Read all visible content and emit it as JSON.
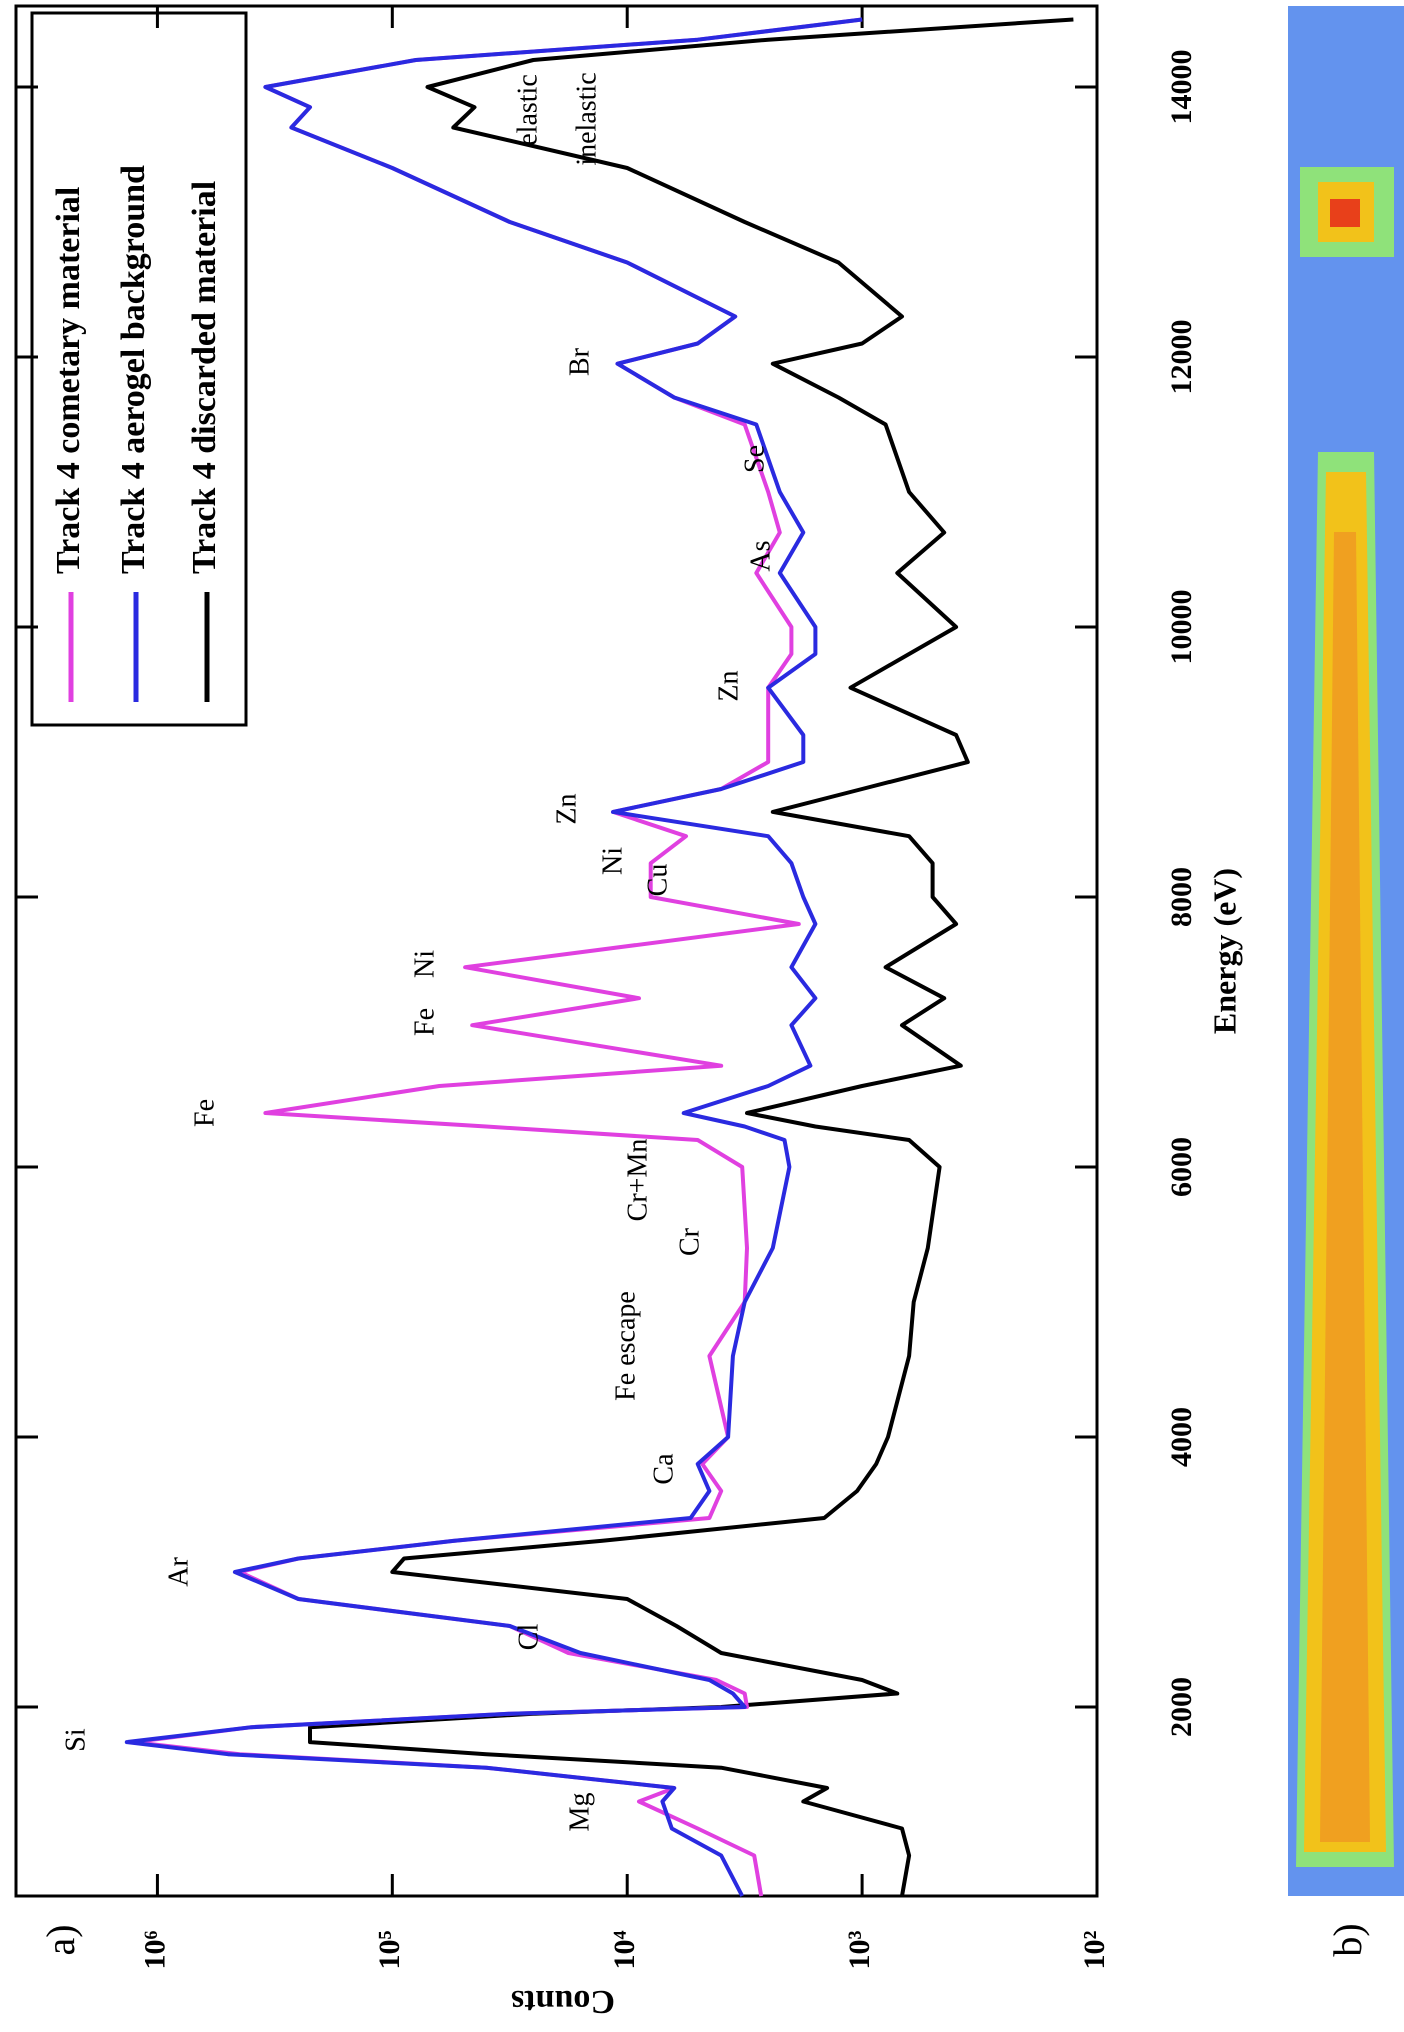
{
  "chart_data": {
    "type": "line",
    "panel_labels": [
      "a)",
      "b)"
    ],
    "x_label": "Energy (eV)",
    "y_label": "Counts",
    "ylog": true,
    "legend": "upper right",
    "xlim": [
      600,
      14600
    ],
    "xticks": [
      2000,
      4000,
      6000,
      8000,
      10000,
      12000,
      14000
    ],
    "ylim": [
      100,
      4000000
    ],
    "yticks": [
      {
        "value": 100,
        "label": "10²"
      },
      {
        "value": 1000,
        "label": "10³"
      },
      {
        "value": 10000,
        "label": "10⁴"
      },
      {
        "value": 100000,
        "label": "10⁵"
      },
      {
        "value": 1000000,
        "label": "10⁶"
      }
    ],
    "annotations": [
      "Mg",
      "Si",
      "Cl",
      "Ar",
      "Ca",
      "Fe escape",
      "Cr",
      "Cr+Mn",
      "Fe",
      "Fe",
      "Ni",
      "Cu",
      "Ni",
      "Zn",
      "Zn",
      "As",
      "Se",
      "Br",
      "elastic",
      "inelastic"
    ],
    "x": [
      600,
      900,
      1100,
      1300,
      1400,
      1550,
      1650,
      1740,
      1850,
      1950,
      2000,
      2100,
      2200,
      2400,
      2600,
      2800,
      3000,
      3100,
      3230,
      3400,
      3600,
      3800,
      4000,
      4600,
      5000,
      5400,
      6000,
      6200,
      6300,
      6400,
      6600,
      6750,
      7050,
      7250,
      7480,
      7800,
      8000,
      8250,
      8450,
      8630,
      8800,
      9000,
      9200,
      9550,
      9800,
      10000,
      10400,
      10700,
      11000,
      11500,
      11700,
      11950,
      12100,
      12300,
      12700,
      13000,
      13400,
      13700,
      13850,
      14000,
      14200,
      14350,
      14500
    ],
    "series": [
      {
        "name": "Track 4 cometary material",
        "color": "#e040e0",
        "values": [
          2690,
          2880,
          5010,
          8910,
          6310,
          39800,
          447000,
          1260000,
          398000,
          31600,
          3090,
          3160,
          4170,
          17800,
          31600,
          251000,
          447000,
          251000,
          55000,
          4470,
          3980,
          4790,
          3720,
          4470,
          3160,
          3090,
          3240,
          5010,
          39800,
          347000,
          63100,
          3980,
          45700,
          8910,
          49000,
          1860,
          7940,
          7940,
          5620,
          11500,
          3980,
          2510,
          2510,
          2510,
          2000,
          2000,
          2820,
          2240,
          2510,
          3160,
          6310,
          11000,
          5010,
          3470,
          10000,
          31600,
          100000,
          269000,
          224000,
          347000,
          79400,
          5010,
          1000
        ]
      },
      {
        "name": "Track 4 aerogel background",
        "color": "#2a2ae0",
        "values": [
          3240,
          3980,
          6460,
          7080,
          6310,
          39800,
          501000,
          1350000,
          398000,
          31600,
          3160,
          3550,
          4470,
          15800,
          31600,
          251000,
          468000,
          251000,
          55000,
          5370,
          4470,
          5010,
          3720,
          3550,
          3160,
          2400,
          2040,
          2140,
          3160,
          5750,
          2510,
          1660,
          2000,
          1580,
          2000,
          1580,
          1780,
          2000,
          2510,
          11500,
          3980,
          1780,
          1780,
          2510,
          1580,
          1580,
          2240,
          1780,
          2240,
          2820,
          6310,
          11000,
          5010,
          3470,
          10000,
          31600,
          100000,
          269000,
          224000,
          347000,
          79400,
          5010,
          1000
        ]
      },
      {
        "name": "Track 4 discarded material",
        "color": "#000000",
        "values": [
          676,
          631,
          676,
          1780,
          1410,
          3980,
          39800,
          224000,
          224000,
          25100,
          3980,
          708,
          1000,
          3980,
          6170,
          10000,
          100000,
          89100,
          12900,
          1450,
          1050,
          871,
          776,
          631,
          603,
          525,
          468,
          631,
          1580,
          3090,
          1000,
          380,
          676,
          447,
          794,
          398,
          501,
          501,
          631,
          2400,
          1000,
          355,
          398,
          1120,
          631,
          398,
          708,
          447,
          631,
          794,
          1260,
          2400,
          1000,
          676,
          1260,
          3160,
          10000,
          55000,
          44700,
          70800,
          25100,
          2510,
          126
        ]
      }
    ]
  }
}
